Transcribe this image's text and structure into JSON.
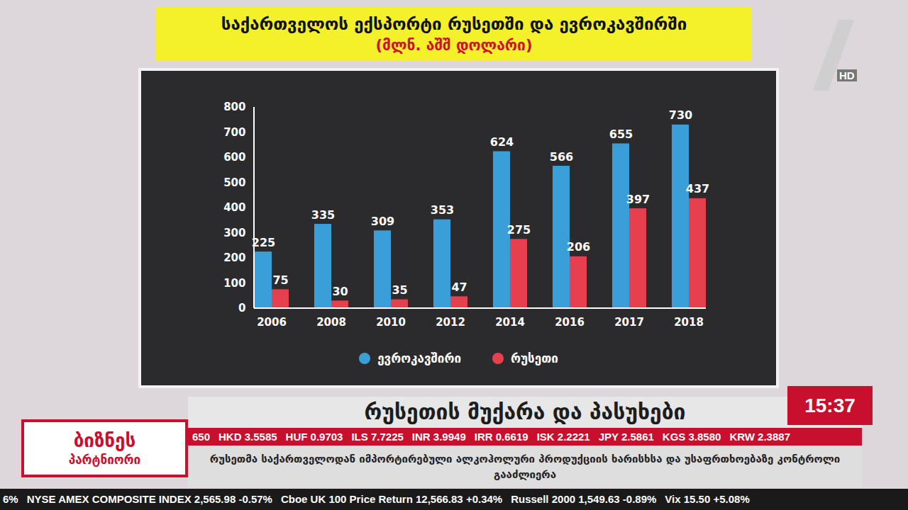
{
  "chart_data": {
    "type": "bar",
    "title": "საქართველოს ექსპორტი რუსეთში და ევროკავშირში",
    "subtitle": "(მლნ. აშშ დოლარი)",
    "categories": [
      "2006",
      "2008",
      "2010",
      "2012",
      "2014",
      "2016",
      "2017",
      "2018"
    ],
    "series": [
      {
        "name": "ევროკავშირი",
        "color": "#3a9fd9",
        "values": [
          225,
          335,
          309,
          353,
          624,
          566,
          655,
          730
        ]
      },
      {
        "name": "რუსეთი",
        "color": "#e6404e",
        "values": [
          75,
          30,
          35,
          47,
          275,
          206,
          397,
          437
        ]
      }
    ],
    "ylim": [
      0,
      800
    ],
    "yticks": [
      0,
      100,
      200,
      300,
      400,
      500,
      600,
      700,
      800
    ],
    "grid": false,
    "data_labels": true,
    "legend": "bottom"
  },
  "broadcast": {
    "logo": "HD",
    "program": [
      "ბიზნეს",
      "პარტნიორი"
    ],
    "headline": "რუსეთის მუქარა და პასუხები",
    "time": "15:37",
    "currency_ticker": [
      "650",
      "HKD 3.5585",
      "HUF 0.9703",
      "ILS 7.7225",
      "INR 3.9949",
      "IRR 0.6619",
      "ISK 2.2221",
      "JPY 2.5861",
      "KGS 3.8580",
      "KRW 2.3887"
    ],
    "caption": "რუსეთმა საქართველოდან იმპორტირებული ალკოჰოლური პროდუქციის ხარისხსა და უსაფრთხოებაზე კონტროლი გააძლიერა",
    "market_ticker": [
      "6%",
      "NYSE AMEX COMPOSITE INDEX 2,565.98 -0.57%",
      "Cboe UK 100 Price Return 12,566.83 +0.34%",
      "Russell 2000 1,549.63 -0.89%",
      "Vix 15.50 +5.08%"
    ]
  }
}
